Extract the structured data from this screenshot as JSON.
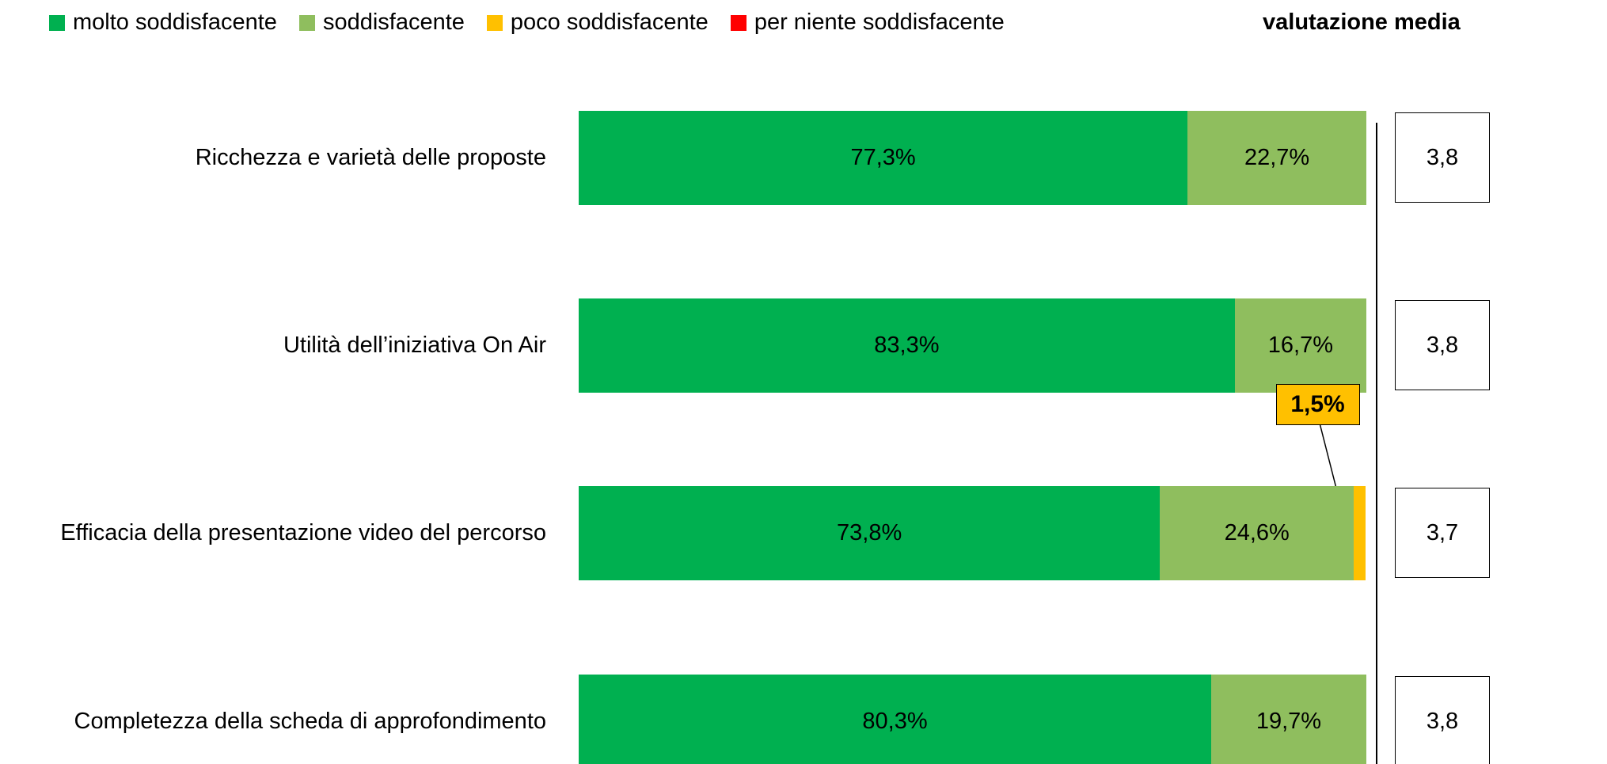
{
  "chart_data": {
    "type": "stacked_barh",
    "categories": [
      "Ricchezza e varietà delle proposte",
      "Utilità dell’iniziativa On Air",
      "Efficacia della presentazione video del percorso",
      "Completezza della scheda di approfondimento"
    ],
    "xlim": [
      0,
      100
    ],
    "series": [
      {
        "name": "molto soddisfacente",
        "color": "#00b050",
        "values": [
          77.3,
          83.3,
          73.8,
          80.3
        ],
        "value_labels": [
          "77,3%",
          "83,3%",
          "73,8%",
          "80,3%"
        ]
      },
      {
        "name": "soddisfacente",
        "color": "#8fbe5e",
        "values": [
          22.7,
          16.7,
          24.6,
          19.7
        ],
        "value_labels": [
          "22,7%",
          "16,7%",
          "24,6%",
          "19,7%"
        ]
      },
      {
        "name": "poco soddisfacente",
        "color": "#ffc000",
        "values": [
          0,
          0,
          1.5,
          0
        ],
        "value_labels": [
          null,
          null,
          "1,5%",
          null
        ]
      },
      {
        "name": "per niente soddisfacente",
        "color": "#ff0000",
        "values": [
          0,
          0,
          0,
          0
        ]
      }
    ],
    "average": {
      "title": "valutazione media",
      "values": [
        3.8,
        3.8,
        3.7,
        3.8
      ],
      "value_labels": [
        "3,8",
        "3,8",
        "3,7",
        "3,8"
      ]
    }
  }
}
